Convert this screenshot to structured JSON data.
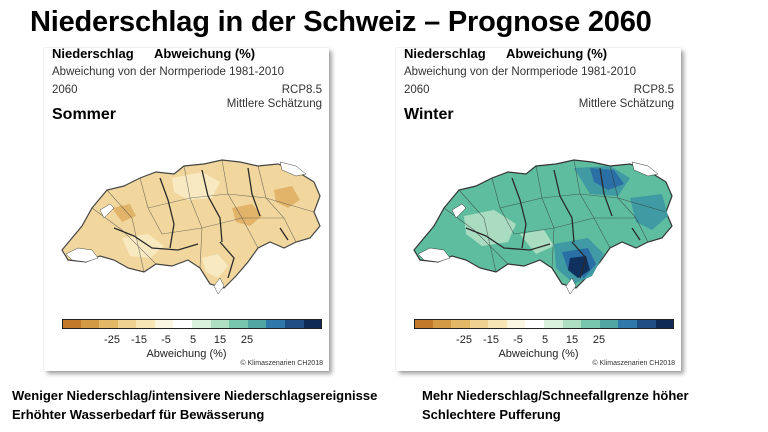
{
  "title": "Niederschlag in der Schweiz – Prognose 2060",
  "colorbar": {
    "colors": [
      "#c07a2a",
      "#d39a45",
      "#e2b765",
      "#efd28f",
      "#f7e6b4",
      "#fbf6e2",
      "#ffffff",
      "#d9f0dc",
      "#aedfc2",
      "#76c7ad",
      "#4fa6a3",
      "#2e79a9",
      "#1f4f85",
      "#0e2a55"
    ],
    "ticks": [
      "-25",
      "-15",
      "-5",
      "5",
      "15",
      "25"
    ],
    "label": "Abweichung (%)"
  },
  "panels": {
    "summer": {
      "variable": "Niederschlag",
      "metric": "Abweichung (%)",
      "subtitle": "Abweichung von der Normperiode 1981-2010",
      "year": "2060",
      "scenario": "RCP8.5",
      "estimate": "Mittlere Schätzung",
      "season": "Sommer",
      "copyright": "© Klimaszenarien CH2018",
      "map_colors": {
        "base": "#f1d79d",
        "light": "#f8e9c1",
        "dark": "#e2b46a",
        "lakes": "#ffffff",
        "rivers": "#2a2a2a",
        "borders": "#444444"
      }
    },
    "winter": {
      "variable": "Niederschlag",
      "metric": "Abweichung (%)",
      "subtitle": "Abweichung von der Normperiode 1981-2010",
      "year": "2060",
      "scenario": "RCP8.5",
      "estimate": "Mittlere Schätzung",
      "season": "Winter",
      "copyright": "© Klimaszenarien CH2018",
      "map_colors": {
        "base": "#5fbd9f",
        "light": "#a9dcc0",
        "mid": "#3f9aa3",
        "dark": "#2a6fa6",
        "darkest": "#10305d",
        "lakes": "#ffffff",
        "rivers": "#2a2a2a",
        "borders": "#333333"
      }
    }
  },
  "captions": {
    "summer": [
      "Weniger Niederschlag/intensivere Niederschlagsereignisse",
      "Erhöhter Wasserbedarf für Bewässerung"
    ],
    "winter": [
      "Mehr Niederschlag/Schneefallgrenze höher",
      "Schlechtere Pufferung"
    ]
  }
}
